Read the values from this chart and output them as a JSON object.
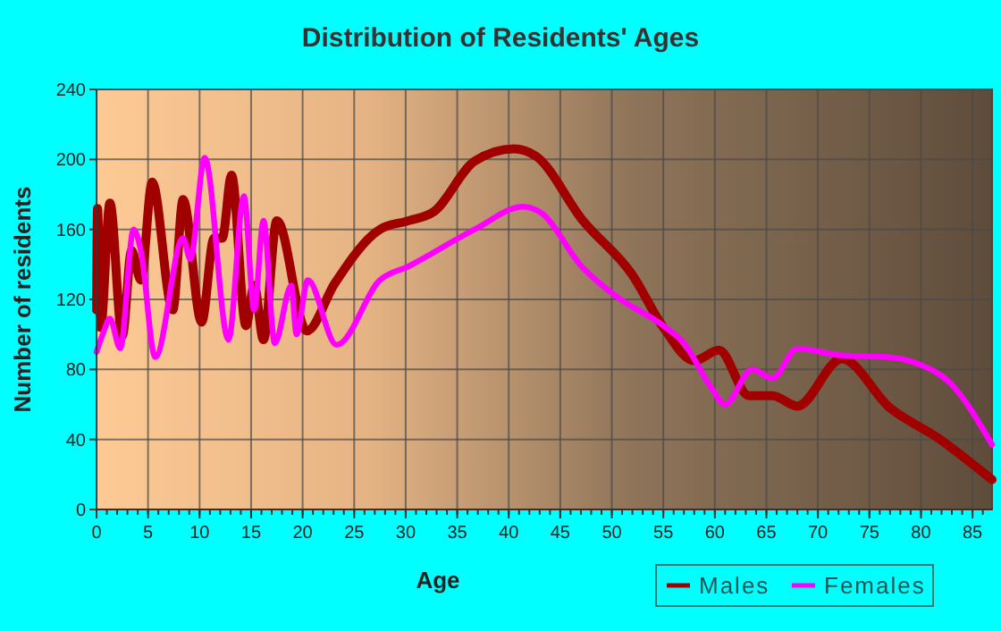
{
  "chart_data": {
    "type": "line",
    "title": "Distribution of Residents' Ages",
    "xlabel": "Age",
    "ylabel": "Number of residents",
    "xlim": [
      0,
      86.9
    ],
    "xticks": [
      0,
      5,
      10,
      15,
      20,
      25,
      30,
      35,
      40,
      45,
      50,
      55,
      60,
      65,
      70,
      75,
      80,
      85
    ],
    "ylim": [
      0,
      240
    ],
    "yticks": [
      0,
      40,
      80,
      120,
      160,
      200,
      240
    ],
    "grid": true,
    "legend": "bottom right",
    "line_style": "solid",
    "marker": "none",
    "series": [
      {
        "name": "Males",
        "color": "#a00000",
        "x": [
          0,
          0.1,
          0.4,
          1.3,
          2.5,
          3.4,
          4.3,
          5.4,
          7.4,
          8.4,
          10.2,
          11.4,
          12.2,
          13.1,
          14.5,
          15.3,
          16.2,
          17.5,
          20.4,
          23.1,
          27.5,
          30.3,
          32.7,
          36.7,
          40.5,
          42.6,
          47.2,
          52,
          55,
          58,
          60.4,
          63.3,
          65.6,
          68,
          72.3,
          77,
          81.6,
          86.9
        ],
        "values": [
          114,
          172,
          104,
          175,
          99,
          148,
          131,
          187,
          114,
          177,
          107,
          155,
          155,
          191,
          105,
          128,
          97,
          165,
          102,
          129,
          160,
          165,
          170,
          199,
          206,
          202,
          165,
          134,
          104,
          85,
          91,
          65,
          65,
          59,
          86,
          58,
          41,
          17
        ]
      },
      {
        "name": "Females",
        "color": "#ff00ff",
        "x": [
          0,
          0.6,
          1.3,
          2.3,
          3.6,
          4.3,
          5.7,
          8.4,
          9.1,
          10.5,
          12.8,
          14.3,
          15.3,
          16.2,
          17.3,
          18.9,
          19.4,
          20.5,
          23.3,
          27.5,
          30.3,
          36.7,
          41.4,
          43,
          47.2,
          50.6,
          55,
          57,
          59.6,
          61,
          63.6,
          65.6,
          68,
          72.3,
          77,
          79.8,
          82.7,
          86.9
        ],
        "values": [
          90,
          100,
          109,
          92,
          160,
          148,
          87,
          155,
          143,
          201,
          97,
          179,
          114,
          165,
          95,
          128,
          100,
          131,
          94,
          131,
          139,
          160,
          173,
          170,
          138,
          121,
          105,
          95,
          70,
          60,
          80,
          75,
          92,
          88,
          87,
          83,
          73,
          37
        ]
      }
    ]
  }
}
